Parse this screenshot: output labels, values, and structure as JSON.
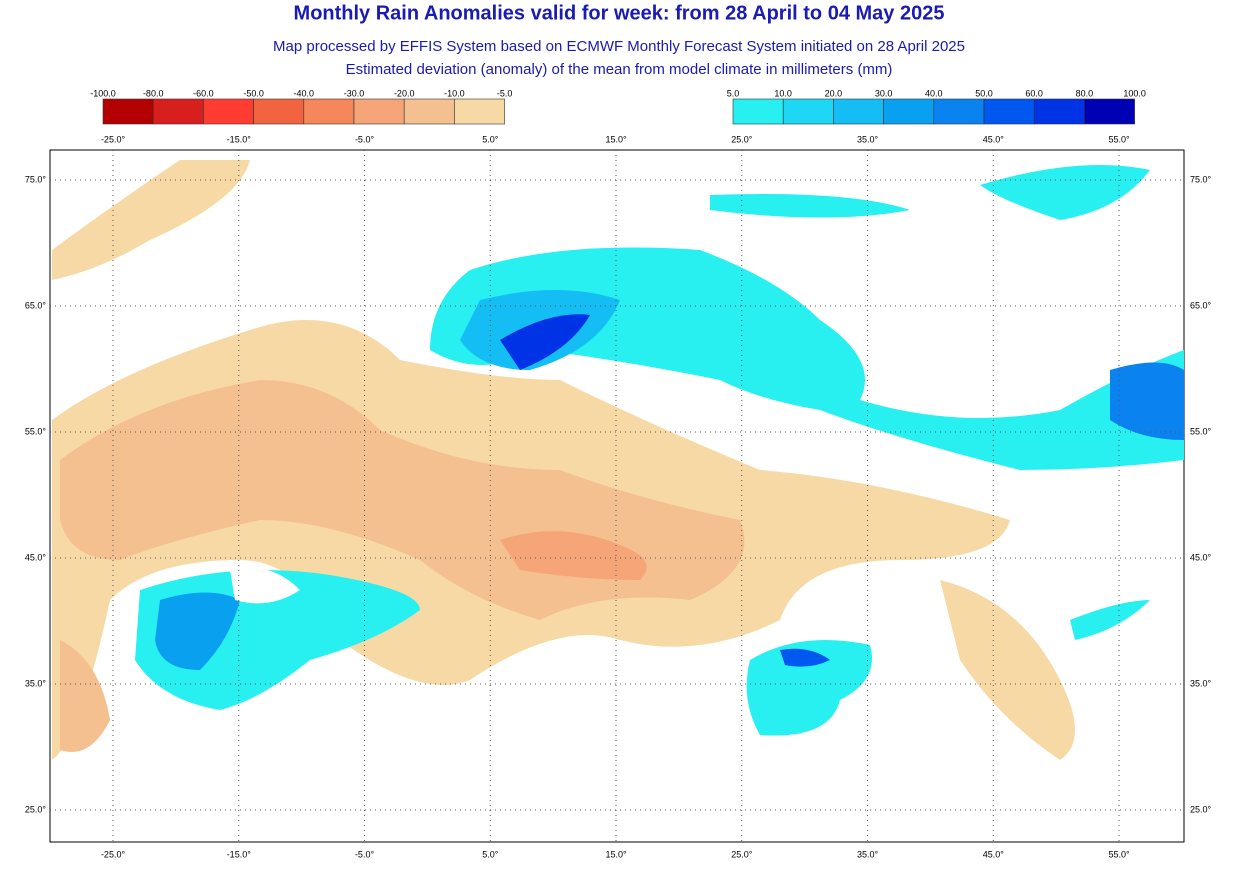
{
  "header": {
    "title": "Monthly Rain Anomalies valid for week: from 28 April to 04 May 2025",
    "subtitle_lines": [
      "Map processed by EFFIS System based on ECMWF Monthly Forecast System initiated on 28 April 2025",
      "Estimated deviation (anomaly) of the mean from model climate in millimeters (mm)"
    ]
  },
  "legend_negative": {
    "labels": [
      "-100.0",
      "-80.0",
      "-60.0",
      "-50.0",
      "-40.0",
      "-30.0",
      "-20.0",
      "-10.0",
      "-5.0"
    ],
    "colors": [
      "#b40000",
      "#d91e1e",
      "#ff3c32",
      "#f26440",
      "#f5875a",
      "#f5a578",
      "#f5c090",
      "#f7d9a5"
    ]
  },
  "legend_positive": {
    "labels": [
      "5.0",
      "10.0",
      "20.0",
      "30.0",
      "40.0",
      "50.0",
      "60.0",
      "80.0",
      "100.0"
    ],
    "colors": [
      "#28f0f0",
      "#1ed7f5",
      "#14bef5",
      "#0aa0f0",
      "#0a82f0",
      "#0058f0",
      "#0032e6",
      "#0000b4"
    ]
  },
  "map": {
    "lon_labels": [
      "-25.0°",
      "-15.0°",
      "-5.0°",
      "5.0°",
      "15.0°",
      "25.0°",
      "35.0°",
      "45.0°",
      "55.0°"
    ],
    "lat_labels": [
      "75.0°",
      "65.0°",
      "55.0°",
      "45.0°",
      "35.0°",
      "25.0°"
    ]
  }
}
